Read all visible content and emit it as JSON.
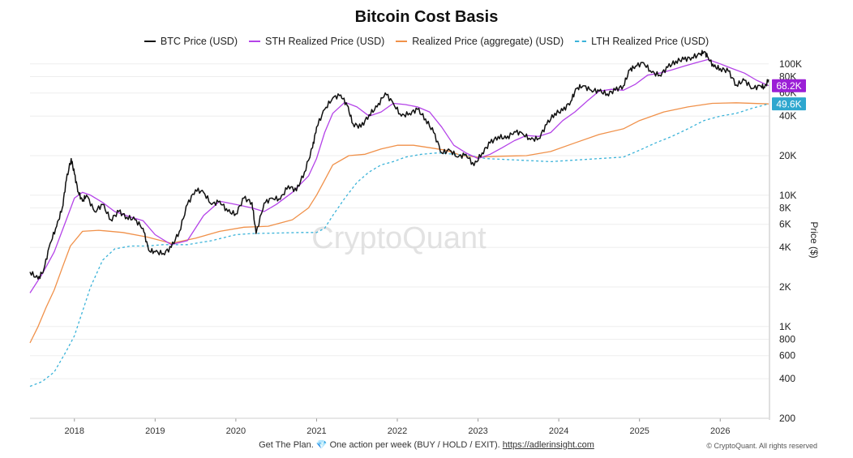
{
  "chart_data": {
    "type": "line",
    "title": "Bitcoin Cost Basis",
    "ylabel": "Price ($)",
    "yscale": "log",
    "ylim": [
      200,
      200000
    ],
    "xlim": [
      2017.45,
      2026.6
    ],
    "watermark": "CryptoQuant",
    "grid": true,
    "legend_position": "top",
    "x_ticks": [
      2018,
      2019,
      2020,
      2021,
      2022,
      2023,
      2024,
      2025,
      2026
    ],
    "x_tick_labels": [
      "2018",
      "2019",
      "2020",
      "2021",
      "2022",
      "2023",
      "2024",
      "2025",
      "2026"
    ],
    "y_ticks": [
      200,
      400,
      600,
      800,
      1000,
      2000,
      4000,
      6000,
      8000,
      10000,
      20000,
      40000,
      60000,
      80000,
      100000
    ],
    "y_tick_labels": [
      "200",
      "400",
      "600",
      "800",
      "1K",
      "2K",
      "4K",
      "6K",
      "8K",
      "10K",
      "20K",
      "40K",
      "60K",
      "80K",
      "100K"
    ],
    "series": [
      {
        "name": "BTC Price (USD)",
        "color": "#111111",
        "dash": "solid",
        "x": [
          2017.45,
          2017.55,
          2017.62,
          2017.7,
          2017.78,
          2017.85,
          2017.9,
          2017.96,
          2018.0,
          2018.05,
          2018.1,
          2018.15,
          2018.25,
          2018.35,
          2018.45,
          2018.55,
          2018.65,
          2018.75,
          2018.85,
          2018.92,
          2019.0,
          2019.1,
          2019.2,
          2019.3,
          2019.4,
          2019.5,
          2019.6,
          2019.7,
          2019.8,
          2019.9,
          2020.0,
          2020.1,
          2020.2,
          2020.25,
          2020.35,
          2020.45,
          2020.55,
          2020.65,
          2020.75,
          2020.85,
          2020.95,
          2021.0,
          2021.1,
          2021.2,
          2021.3,
          2021.38,
          2021.45,
          2021.55,
          2021.65,
          2021.75,
          2021.85,
          2021.95,
          2022.05,
          2022.15,
          2022.25,
          2022.35,
          2022.45,
          2022.55,
          2022.65,
          2022.75,
          2022.85,
          2022.95,
          2023.05,
          2023.15,
          2023.25,
          2023.35,
          2023.45,
          2023.55,
          2023.65,
          2023.75,
          2023.85,
          2023.95,
          2024.05,
          2024.15,
          2024.22,
          2024.3,
          2024.4,
          2024.5,
          2024.6,
          2024.7,
          2024.8,
          2024.88,
          2024.95,
          2025.05,
          2025.15,
          2025.25,
          2025.35,
          2025.45,
          2025.55,
          2025.65,
          2025.75,
          2025.8,
          2025.85,
          2025.92,
          2026.0,
          2026.1,
          2026.2,
          2026.3,
          2026.4,
          2026.5,
          2026.55,
          2026.6
        ],
        "y": [
          2600,
          2300,
          2700,
          4300,
          5800,
          8000,
          13000,
          19000,
          14500,
          10500,
          9000,
          10000,
          7500,
          8500,
          6500,
          7500,
          6800,
          6500,
          5600,
          3800,
          3700,
          3600,
          4000,
          5300,
          8500,
          11000,
          10500,
          8500,
          9000,
          7500,
          7200,
          9500,
          8800,
          5100,
          8700,
          9500,
          9300,
          11800,
          10800,
          15000,
          23000,
          33000,
          45000,
          55000,
          58000,
          48000,
          35000,
          33000,
          41000,
          47000,
          60000,
          50000,
          40000,
          42000,
          45000,
          38000,
          30000,
          21000,
          22000,
          19500,
          20500,
          16800,
          21000,
          25000,
          28000,
          27000,
          30500,
          29500,
          26500,
          27000,
          34500,
          42000,
          44000,
          52000,
          65000,
          68000,
          63000,
          62000,
          59000,
          63000,
          68000,
          90000,
          96000,
          102000,
          86000,
          82000,
          94000,
          105000,
          108000,
          112000,
          118000,
          124000,
          112000,
          95000,
          92000,
          88000,
          69000,
          75000,
          65000,
          68000,
          66000,
          76000
        ]
      },
      {
        "name": "STH Realized Price (USD)",
        "color": "#b443e8",
        "dash": "solid",
        "x": [
          2017.45,
          2017.6,
          2017.75,
          2017.9,
          2018.0,
          2018.1,
          2018.2,
          2018.35,
          2018.5,
          2018.7,
          2018.85,
          2019.0,
          2019.2,
          2019.4,
          2019.6,
          2019.8,
          2020.0,
          2020.2,
          2020.35,
          2020.5,
          2020.7,
          2020.9,
          2021.0,
          2021.1,
          2021.2,
          2021.35,
          2021.5,
          2021.65,
          2021.8,
          2021.95,
          2022.1,
          2022.25,
          2022.4,
          2022.55,
          2022.7,
          2022.85,
          2023.0,
          2023.15,
          2023.3,
          2023.45,
          2023.6,
          2023.75,
          2023.9,
          2024.05,
          2024.2,
          2024.35,
          2024.5,
          2024.65,
          2024.8,
          2024.95,
          2025.1,
          2025.25,
          2025.4,
          2025.55,
          2025.7,
          2025.85,
          2026.0,
          2026.15,
          2026.3,
          2026.45,
          2026.6
        ],
        "y": [
          1800,
          2500,
          3700,
          6500,
          9500,
          10500,
          10000,
          8800,
          7500,
          6800,
          6400,
          5000,
          4200,
          4500,
          7000,
          9000,
          8500,
          8000,
          7500,
          8500,
          10500,
          14000,
          19000,
          30000,
          42000,
          51000,
          47000,
          40000,
          43000,
          50000,
          49000,
          47000,
          43000,
          33000,
          24000,
          21000,
          19000,
          20500,
          23000,
          26000,
          28500,
          28000,
          30000,
          37000,
          43000,
          52000,
          62000,
          64000,
          63000,
          70000,
          82000,
          85000,
          90000,
          96000,
          102000,
          108000,
          100000,
          92000,
          85000,
          75000,
          68200
        ]
      },
      {
        "name": "Realized Price (aggregate) (USD)",
        "color": "#f0914a",
        "dash": "solid",
        "x": [
          2017.45,
          2017.55,
          2017.65,
          2017.75,
          2017.85,
          2017.95,
          2018.1,
          2018.3,
          2018.6,
          2018.9,
          2019.2,
          2019.5,
          2019.8,
          2020.1,
          2020.4,
          2020.7,
          2020.9,
          2021.0,
          2021.1,
          2021.2,
          2021.4,
          2021.6,
          2021.8,
          2022.0,
          2022.2,
          2022.4,
          2022.6,
          2022.8,
          2023.0,
          2023.3,
          2023.6,
          2023.9,
          2024.2,
          2024.5,
          2024.8,
          2025.0,
          2025.3,
          2025.6,
          2025.9,
          2026.2,
          2026.6
        ],
        "y": [
          750,
          1000,
          1400,
          1900,
          2800,
          4100,
          5300,
          5400,
          5200,
          4800,
          4300,
          4700,
          5300,
          5700,
          5800,
          6500,
          8000,
          10000,
          13000,
          17000,
          20000,
          20500,
          22500,
          24000,
          24000,
          23000,
          22000,
          20000,
          19500,
          19800,
          20000,
          21500,
          25000,
          29000,
          32000,
          37000,
          43000,
          47000,
          50000,
          50500,
          49500
        ]
      },
      {
        "name": "LTH Realized Price (USD)",
        "color": "#3bb3d9",
        "dash": "dashed",
        "x": [
          2017.45,
          2017.6,
          2017.75,
          2017.9,
          2018.0,
          2018.1,
          2018.2,
          2018.35,
          2018.5,
          2018.7,
          2018.9,
          2019.1,
          2019.4,
          2019.7,
          2020.0,
          2020.2,
          2020.5,
          2020.8,
          2021.0,
          2021.1,
          2021.2,
          2021.35,
          2021.5,
          2021.65,
          2021.8,
          2021.95,
          2022.1,
          2022.3,
          2022.5,
          2022.7,
          2022.9,
          2023.1,
          2023.5,
          2023.9,
          2024.2,
          2024.5,
          2024.8,
          2025.0,
          2025.2,
          2025.4,
          2025.6,
          2025.8,
          2026.0,
          2026.2,
          2026.4,
          2026.6
        ],
        "y": [
          350,
          380,
          450,
          650,
          850,
          1300,
          2000,
          3200,
          3900,
          4100,
          4100,
          4200,
          4200,
          4500,
          5000,
          5100,
          5150,
          5200,
          5200,
          5600,
          7000,
          9500,
          12500,
          15000,
          17000,
          18000,
          19500,
          20500,
          21000,
          20500,
          20000,
          19000,
          18500,
          18000,
          18500,
          19000,
          19500,
          22000,
          25000,
          28000,
          32000,
          37000,
          40000,
          42000,
          46000,
          49600
        ]
      }
    ],
    "end_labels": [
      {
        "text": "68.2K",
        "value": 68200,
        "color": "#9b1fd6"
      },
      {
        "text": "49.6K",
        "value": 49600,
        "color": "#2ea7cf"
      }
    ]
  },
  "footer": {
    "text": "Get The Plan.",
    "gem_icon": "💎",
    "text2": "One action per week (BUY / HOLD / EXIT).",
    "link": "https://adlerinsight.com",
    "copyright": "© CryptoQuant. All rights reserved"
  }
}
